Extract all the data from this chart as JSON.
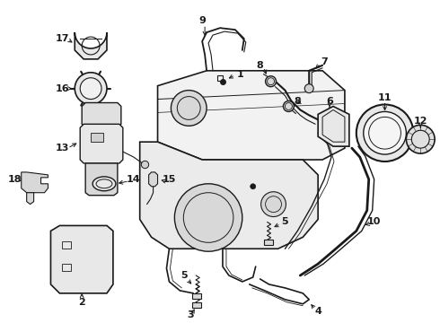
{
  "background_color": "#ffffff",
  "line_color": "#1a1a1a",
  "figsize": [
    4.9,
    3.6
  ],
  "dpi": 100,
  "components": {
    "tank_main": {
      "fill": "#f0f0f0"
    },
    "tank_lower": {
      "fill": "#e0e0e0"
    },
    "parts_fill": "#e8e8e8"
  }
}
